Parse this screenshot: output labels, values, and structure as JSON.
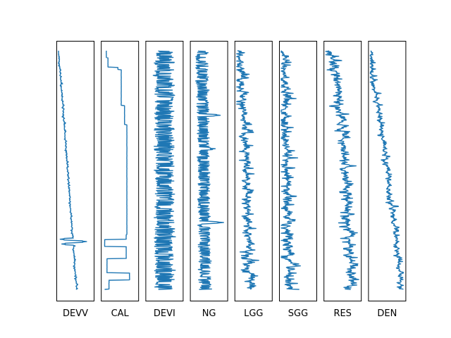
{
  "chart_data": {
    "type": "line",
    "layout": "well-log tracks, depth increasing downward",
    "line_color": "#1f77b4",
    "grid": false,
    "axis_ticks": false,
    "tracks": [
      {
        "name": "DEVV",
        "xlim": [
          0,
          100
        ],
        "trend": {
          "start": 0,
          "end": 55,
          "curve": 1,
          "onset": 0.0
        },
        "noise": {
          "amplitude": 8,
          "low_amplitude": 0,
          "seed": 11
        },
        "steps": [],
        "spikes": [
          {
            "depth": 0.79,
            "value": 5
          },
          {
            "depth": 0.8,
            "value": 85
          },
          {
            "depth": 0.81,
            "value": 10
          },
          {
            "depth": 0.57,
            "value": 30
          },
          {
            "depth": 0.76,
            "value": 40
          }
        ]
      },
      {
        "name": "CAL",
        "xlim": [
          0,
          100
        ],
        "trend": {
          "start": 5,
          "end": 5,
          "curve": 1,
          "onset": 0.0
        },
        "noise": {
          "amplitude": 0.6,
          "low_amplitude": 0,
          "seed": 3
        },
        "steps": [
          {
            "from": 0.0,
            "to": 0.03,
            "value": 10
          },
          {
            "from": 0.03,
            "to": 0.07,
            "value": 15
          },
          {
            "from": 0.07,
            "to": 0.08,
            "value": 45
          },
          {
            "from": 0.08,
            "to": 0.23,
            "value": 55
          },
          {
            "from": 0.23,
            "to": 0.31,
            "value": 65
          },
          {
            "from": 0.31,
            "to": 0.77,
            "value": 72
          },
          {
            "from": 0.77,
            "to": 0.79,
            "value": 70
          },
          {
            "from": 0.79,
            "to": 0.82,
            "value": 5
          },
          {
            "from": 0.82,
            "to": 0.87,
            "value": 70
          },
          {
            "from": 0.87,
            "to": 0.93,
            "value": 12
          },
          {
            "from": 0.93,
            "to": 0.96,
            "value": 80
          },
          {
            "from": 0.96,
            "to": 1.0,
            "value": 18
          }
        ],
        "spikes": []
      },
      {
        "name": "DEVI",
        "xlim": [
          0,
          100
        ],
        "trend": {
          "start": 50,
          "end": 50,
          "curve": 1,
          "onset": 0.0
        },
        "noise": {
          "amplitude": 40,
          "low_amplitude": 18,
          "seed": 21
        },
        "steps": [],
        "spikes": []
      },
      {
        "name": "NG",
        "xlim": [
          0,
          100
        ],
        "trend": {
          "start": 30,
          "end": 40,
          "curve": 1,
          "onset": 0.0
        },
        "noise": {
          "amplitude": 25,
          "low_amplitude": 10,
          "seed": 33
        },
        "steps": [],
        "spikes": [
          {
            "depth": 0.41,
            "value": 70
          },
          {
            "depth": 0.72,
            "value": 95
          },
          {
            "depth": 0.27,
            "value": 85
          }
        ]
      },
      {
        "name": "LGG",
        "xlim": [
          0,
          100
        ],
        "trend": {
          "start": 5,
          "end": 40,
          "curve": 0.6,
          "onset": 0.0
        },
        "noise": {
          "amplitude": 45,
          "low_amplitude": 0,
          "seed": 44
        },
        "steps": [],
        "spikes": []
      },
      {
        "name": "SGG",
        "xlim": [
          0,
          100
        ],
        "trend": {
          "start": 5,
          "end": 25,
          "curve": 0.6,
          "onset": 0.0
        },
        "noise": {
          "amplitude": 55,
          "low_amplitude": 0,
          "seed": 55
        },
        "steps": [],
        "spikes": []
      },
      {
        "name": "RES",
        "xlim": [
          0,
          100
        ],
        "trend": {
          "start": 10,
          "end": 80,
          "curve": 0.5,
          "onset": 0.0
        },
        "noise": {
          "amplitude": 50,
          "low_amplitude": 0,
          "seed": 66
        },
        "steps": [],
        "spikes": []
      },
      {
        "name": "DEN",
        "xlim": [
          0,
          100
        ],
        "trend": {
          "start": 3,
          "end": 95,
          "curve": 0.8,
          "onset": 0.1
        },
        "noise": {
          "amplitude": 28,
          "low_amplitude": 0,
          "seed": 77
        },
        "steps": [],
        "spikes": []
      }
    ]
  }
}
